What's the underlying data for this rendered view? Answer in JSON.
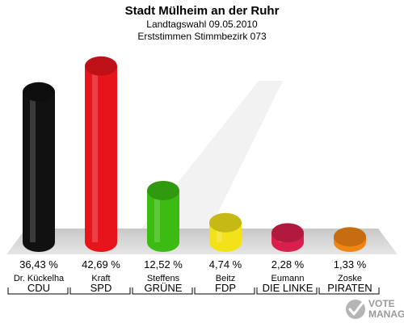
{
  "chart_data": {
    "type": "bar",
    "title": "Stadt Mülheim an der Ruhr",
    "subtitle_1": "Landtagswahl 09.05.2010",
    "subtitle_2": "Erststimmen Stimmbezirk 073",
    "categories": [
      "CDU",
      "SPD",
      "GRÜNE",
      "FDP",
      "DIE LINKE",
      "PIRATEN"
    ],
    "candidates": [
      "Dr. Kückelha",
      "Kraft",
      "Steffens",
      "Beitz",
      "Eumann",
      "Zoske"
    ],
    "values": [
      36.43,
      42.69,
      12.52,
      4.74,
      2.28,
      1.33
    ],
    "value_labels": [
      "36,43 %",
      "42,69 %",
      "12,52 %",
      "4,74 %",
      "2,28 %",
      "1,33 %"
    ],
    "colors": [
      "#111111",
      "#e8141c",
      "#3cbb12",
      "#f3e21a",
      "#d8204d",
      "#f08514"
    ],
    "ylim": [
      0,
      45
    ],
    "grid": false,
    "legend": "none"
  },
  "watermark": {
    "line1": "VOTE",
    "line2": "MANAGER",
    "icon": "vote-checkmark-icon"
  }
}
